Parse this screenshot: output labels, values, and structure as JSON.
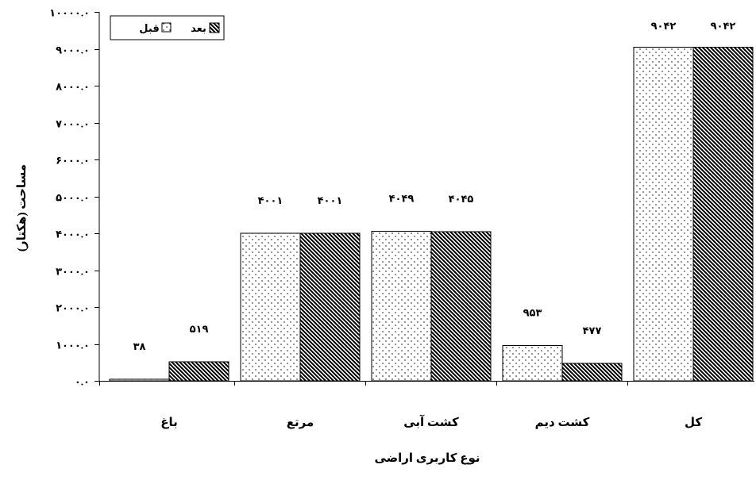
{
  "chart_data": {
    "type": "bar",
    "categories": [
      "باغ",
      "مرتع",
      "کشت آبی",
      "کشت دیم",
      "کل"
    ],
    "series": [
      {
        "name": "قبل",
        "fill": "dotted",
        "values": [
          38,
          4001,
          4049,
          953,
          9042
        ],
        "data_labels": [
          "۳۸",
          "۴۰۰۱",
          "۴۰۴۹",
          "۹۵۳",
          "۹۰۴۲"
        ]
      },
      {
        "name": "بعد",
        "fill": "diagonal-hatch",
        "values": [
          519,
          4001,
          4045,
          477,
          9042
        ],
        "data_labels": [
          "۵۱۹",
          "۴۰۰۱",
          "۴۰۴۵",
          "۴۷۷",
          "۹۰۴۲"
        ]
      }
    ],
    "xlabel": "نوع کاربری اراضی",
    "ylabel": "مساحت (هکتار)",
    "ylim": [
      0,
      10000
    ],
    "yticks": [
      0,
      1000,
      2000,
      3000,
      4000,
      5000,
      6000,
      7000,
      8000,
      9000,
      10000
    ],
    "ytick_labels": [
      "۰.۰",
      "۱۰۰۰.۰",
      "۲۰۰۰.۰",
      "۳۰۰۰.۰",
      "۴۰۰۰.۰",
      "۵۰۰۰.۰",
      "۶۰۰۰.۰",
      "۷۰۰۰.۰",
      "۸۰۰۰.۰",
      "۹۰۰۰.۰",
      "۱۰۰۰۰.۰"
    ],
    "grid": false,
    "legend_position": "top-left"
  },
  "colors": {
    "background": "#ffffff",
    "bar_outline": "#000000",
    "pattern_ink": "#000000"
  }
}
